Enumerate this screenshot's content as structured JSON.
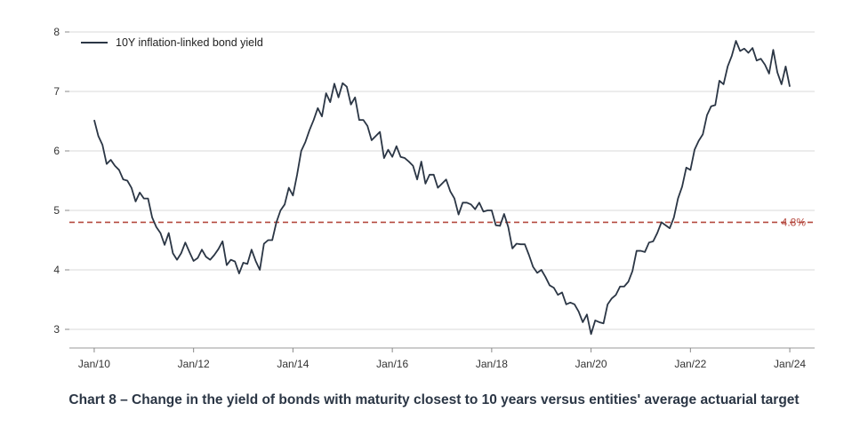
{
  "caption": "Chart 8 – Change in the yield of bonds with maturity closest to 10 years versus entities' average actuarial target",
  "chart_data": {
    "type": "line",
    "title": "",
    "xlabel": "",
    "ylabel": "",
    "ylim": [
      3,
      8
    ],
    "xlim": [
      "2009-07",
      "2024-07"
    ],
    "y_ticks": [
      3,
      4,
      5,
      6,
      7,
      8
    ],
    "x_ticks": [
      "Jan/10",
      "Jan/12",
      "Jan/14",
      "Jan/16",
      "Jan/18",
      "Jan/20",
      "Jan/22",
      "Jan/24"
    ],
    "grid": "horizontal",
    "legend_position": "top-left",
    "series": [
      {
        "name": "10Y inflation-linked bond yield",
        "color": "#2b3645",
        "x": [
          "2010-01",
          "2010-02",
          "2010-03",
          "2010-04",
          "2010-05",
          "2010-06",
          "2010-07",
          "2010-08",
          "2010-09",
          "2010-10",
          "2010-11",
          "2010-12",
          "2011-01",
          "2011-02",
          "2011-03",
          "2011-04",
          "2011-05",
          "2011-06",
          "2011-07",
          "2011-08",
          "2011-09",
          "2011-10",
          "2011-11",
          "2011-12",
          "2012-01",
          "2012-02",
          "2012-03",
          "2012-04",
          "2012-05",
          "2012-06",
          "2012-07",
          "2012-08",
          "2012-09",
          "2012-10",
          "2012-11",
          "2012-12",
          "2013-01",
          "2013-02",
          "2013-03",
          "2013-04",
          "2013-05",
          "2013-06",
          "2013-07",
          "2013-08",
          "2013-09",
          "2013-10",
          "2013-11",
          "2013-12",
          "2014-01",
          "2014-02",
          "2014-03",
          "2014-04",
          "2014-05",
          "2014-06",
          "2014-07",
          "2014-08",
          "2014-09",
          "2014-10",
          "2014-11",
          "2014-12",
          "2015-01",
          "2015-02",
          "2015-03",
          "2015-04",
          "2015-05",
          "2015-06",
          "2015-07",
          "2015-08",
          "2015-09",
          "2015-10",
          "2015-11",
          "2015-12",
          "2016-01",
          "2016-02",
          "2016-03",
          "2016-04",
          "2016-05",
          "2016-06",
          "2016-07",
          "2016-08",
          "2016-09",
          "2016-10",
          "2016-11",
          "2016-12",
          "2017-01",
          "2017-02",
          "2017-03",
          "2017-04",
          "2017-05",
          "2017-06",
          "2017-07",
          "2017-08",
          "2017-09",
          "2017-10",
          "2017-11",
          "2017-12",
          "2018-01",
          "2018-02",
          "2018-03",
          "2018-04",
          "2018-05",
          "2018-06",
          "2018-07",
          "2018-08",
          "2018-09",
          "2018-10",
          "2018-11",
          "2018-12",
          "2019-01",
          "2019-02",
          "2019-03",
          "2019-04",
          "2019-05",
          "2019-06",
          "2019-07",
          "2019-08",
          "2019-09",
          "2019-10",
          "2019-11",
          "2019-12",
          "2020-01",
          "2020-02",
          "2020-03",
          "2020-04",
          "2020-05",
          "2020-06",
          "2020-07",
          "2020-08",
          "2020-09",
          "2020-10",
          "2020-11",
          "2020-12",
          "2021-01",
          "2021-02",
          "2021-03",
          "2021-04",
          "2021-05",
          "2021-06",
          "2021-07",
          "2021-08",
          "2021-09",
          "2021-10",
          "2021-11",
          "2021-12",
          "2022-01",
          "2022-02",
          "2022-03",
          "2022-04",
          "2022-05",
          "2022-06",
          "2022-07",
          "2022-08",
          "2022-09",
          "2022-10",
          "2022-11",
          "2022-12",
          "2023-01",
          "2023-02",
          "2023-03",
          "2023-04",
          "2023-05",
          "2023-06",
          "2023-07",
          "2023-08",
          "2023-09",
          "2023-10",
          "2023-11",
          "2023-12",
          "2024-01"
        ],
        "values": [
          6.52,
          6.25,
          6.1,
          5.78,
          5.85,
          5.75,
          5.68,
          5.52,
          5.5,
          5.38,
          5.15,
          5.3,
          5.2,
          5.2,
          4.88,
          4.72,
          4.62,
          4.42,
          4.62,
          4.28,
          4.17,
          4.28,
          4.46,
          4.3,
          4.15,
          4.2,
          4.34,
          4.22,
          4.17,
          4.25,
          4.35,
          4.48,
          4.08,
          4.17,
          4.14,
          3.94,
          4.12,
          4.1,
          4.34,
          4.15,
          4.0,
          4.44,
          4.5,
          4.5,
          4.8,
          5.0,
          5.1,
          5.38,
          5.25,
          5.6,
          6.0,
          6.15,
          6.35,
          6.52,
          6.72,
          6.58,
          6.97,
          6.82,
          7.13,
          6.9,
          7.14,
          7.08,
          6.78,
          6.9,
          6.52,
          6.52,
          6.42,
          6.18,
          6.25,
          6.32,
          5.88,
          6.02,
          5.9,
          6.08,
          5.9,
          5.88,
          5.82,
          5.75,
          5.52,
          5.82,
          5.45,
          5.6,
          5.6,
          5.38,
          5.45,
          5.52,
          5.32,
          5.2,
          4.93,
          5.13,
          5.13,
          5.1,
          5.02,
          5.13,
          4.98,
          5.0,
          5.0,
          4.75,
          4.74,
          4.94,
          4.72,
          4.36,
          4.44,
          4.43,
          4.43,
          4.25,
          4.05,
          3.95,
          4.0,
          3.88,
          3.74,
          3.7,
          3.58,
          3.62,
          3.42,
          3.45,
          3.42,
          3.3,
          3.12,
          3.25,
          2.92,
          3.15,
          3.12,
          3.1,
          3.42,
          3.52,
          3.58,
          3.72,
          3.72,
          3.8,
          3.98,
          4.32,
          4.32,
          4.3,
          4.46,
          4.48,
          4.62,
          4.8,
          4.75,
          4.7,
          4.88,
          5.2,
          5.4,
          5.72,
          5.68,
          6.02,
          6.17,
          6.28,
          6.6,
          6.75,
          6.77,
          7.18,
          7.12,
          7.42,
          7.6,
          7.85,
          7.68,
          7.72,
          7.65,
          7.73,
          7.52,
          7.55,
          7.45,
          7.3,
          7.7,
          7.32,
          7.12,
          7.42,
          7.08
        ]
      }
    ],
    "reference_line": {
      "value": 4.8,
      "label": "4.8%",
      "color": "#b5493f",
      "style": "dashed"
    }
  }
}
